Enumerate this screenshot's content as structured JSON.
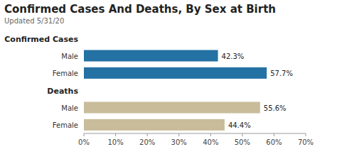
{
  "chart_data": {
    "type": "bar",
    "orientation": "horizontal",
    "title": "Confirmed Cases And Deaths, By Sex at Birth",
    "subtitle": "Updated 5/31/20",
    "series": [
      {
        "name": "Confirmed Cases",
        "color": "#2471a3",
        "categories": [
          "Male",
          "Female"
        ],
        "values": [
          42.3,
          57.7
        ],
        "value_labels": [
          "42.3%",
          "57.7%"
        ]
      },
      {
        "name": "Deaths",
        "color": "#c8bc9a",
        "categories": [
          "Male",
          "Female"
        ],
        "values": [
          55.6,
          44.4
        ],
        "value_labels": [
          "55.6%",
          "44.4%"
        ]
      }
    ],
    "data_labels": true,
    "xlim": [
      0,
      70
    ],
    "xticks": [
      {
        "value": 0,
        "label": "0%"
      },
      {
        "value": 10,
        "label": "10%"
      },
      {
        "value": 20,
        "label": "20%"
      },
      {
        "value": 30,
        "label": "30%"
      },
      {
        "value": 40,
        "label": "40%"
      },
      {
        "value": 50,
        "label": "50%"
      },
      {
        "value": 60,
        "label": "60%"
      },
      {
        "value": 70,
        "label": "70%"
      }
    ]
  }
}
